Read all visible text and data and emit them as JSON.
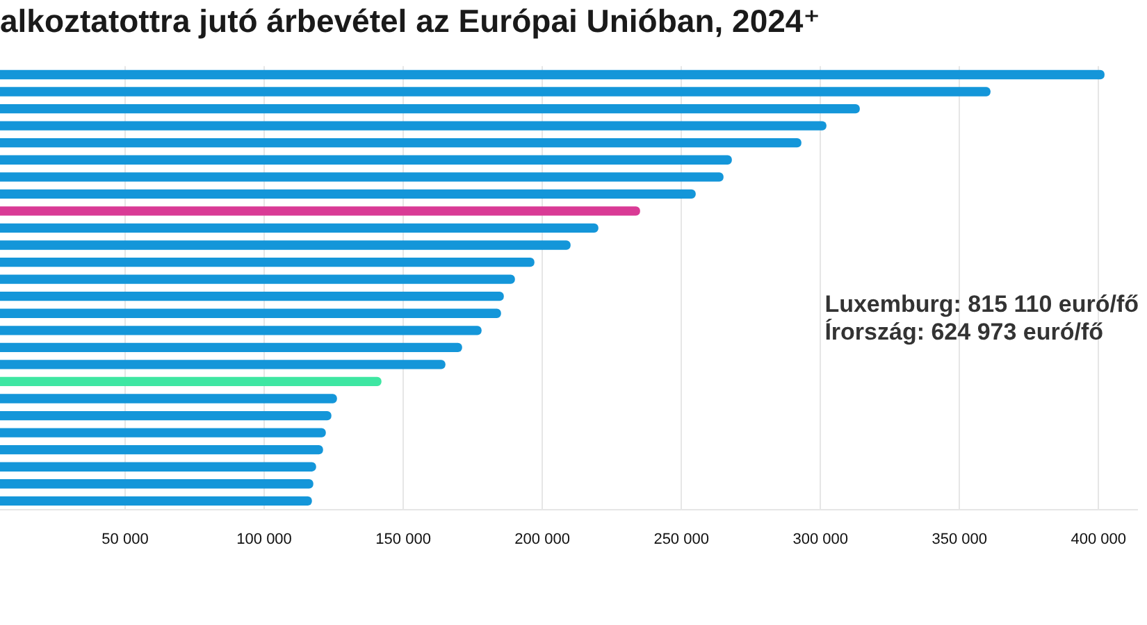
{
  "chart_data": {
    "type": "bar",
    "orientation": "horizontal",
    "title": "alkoztatottra jutó árbevétel az Európai Unióban, 2024⁺",
    "categories": [
      null,
      null,
      null,
      null,
      null,
      null,
      null,
      null,
      null,
      null,
      null,
      null,
      null,
      null,
      null,
      null,
      null,
      null,
      null,
      null,
      null,
      null,
      null,
      null,
      null,
      null
    ],
    "values": [
      402000,
      361000,
      314000,
      302000,
      293000,
      268000,
      265000,
      255000,
      235000,
      220000,
      210000,
      197000,
      190000,
      186000,
      185000,
      178000,
      171000,
      165000,
      142000,
      126000,
      124000,
      122000,
      121000,
      118500,
      117500,
      117000
    ],
    "colors": [
      "#1496d9",
      "#1496d9",
      "#1496d9",
      "#1496d9",
      "#1496d9",
      "#1496d9",
      "#1496d9",
      "#1496d9",
      "#d93a95",
      "#1496d9",
      "#1496d9",
      "#1496d9",
      "#1496d9",
      "#1496d9",
      "#1496d9",
      "#1496d9",
      "#1496d9",
      "#1496d9",
      "#3ee6a2",
      "#1496d9",
      "#1496d9",
      "#1496d9",
      "#1496d9",
      "#1496d9",
      "#1496d9",
      "#1496d9"
    ],
    "xlim": [
      5000,
      414000
    ],
    "xticks": [
      {
        "value": 50000,
        "label": "50 000"
      },
      {
        "value": 100000,
        "label": "100 000"
      },
      {
        "value": 150000,
        "label": "150 000"
      },
      {
        "value": 200000,
        "label": "200 000"
      },
      {
        "value": 250000,
        "label": "250 000"
      },
      {
        "value": 300000,
        "label": "300 000"
      },
      {
        "value": 350000,
        "label": "350 000"
      },
      {
        "value": 400000,
        "label": "400 000"
      }
    ],
    "grid": "x",
    "legend": false,
    "tick_labels": "x",
    "annotations": [
      "Luxemburg: 815 110 euró/fő",
      "Írország: 624 973 euró/fő"
    ]
  }
}
